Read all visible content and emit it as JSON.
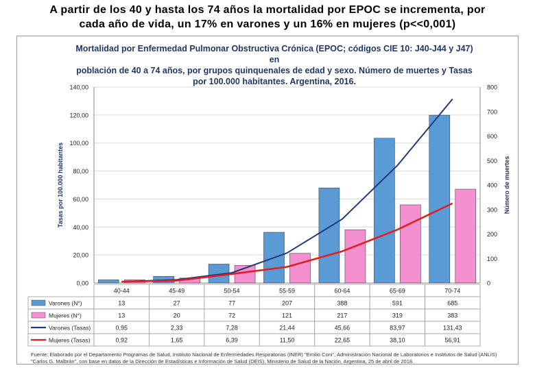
{
  "headline": {
    "line1": "A partir de los 40 y hasta los 74 años la mortalidad por EPOC se incrementa, por",
    "line2": "cada año de vida, un 17% en varones y un 16% en mujeres (p<<0,001)"
  },
  "chart_data": {
    "type": "bar",
    "title_lines": [
      "Mortalidad por Enfermedad Pulmonar Obstructiva Crónica (EPOC; códigos CIE 10: J40-J44 y J47) en",
      "población de 40 a 74 años, por grupos quinquenales de edad y sexo. Número de muertes y Tasas",
      "por 100.000 habitantes. Argentina, 2016."
    ],
    "categories": [
      "40-44",
      "45-49",
      "50-54",
      "55-59",
      "60-64",
      "65-69",
      "70-74"
    ],
    "ylabel": "Tasas por 100.000 habitantes",
    "y2label": "Número de muertes",
    "ylim": [
      0,
      140
    ],
    "y2lim": [
      0,
      800
    ],
    "yticks": [
      "0,00",
      "20,00",
      "40,00",
      "60,00",
      "80,00",
      "100,00",
      "120,00",
      "140,00"
    ],
    "y2ticks": [
      "0",
      "100",
      "200",
      "300",
      "400",
      "500",
      "600",
      "700",
      "800"
    ],
    "bar_series": [
      {
        "name": "Varones (N°)",
        "color": "#5b9bd5",
        "values": [
          13,
          27,
          77,
          207,
          388,
          591,
          685
        ],
        "labels": [
          "13",
          "27",
          "77",
          "207",
          "388",
          "591",
          "685"
        ]
      },
      {
        "name": "Mujeres (N°)",
        "color": "#f48fd0",
        "values": [
          13,
          20,
          72,
          121,
          217,
          319,
          383
        ],
        "labels": [
          "13",
          "20",
          "72",
          "121",
          "217",
          "319",
          "383"
        ]
      }
    ],
    "line_series": [
      {
        "name": "Varones (Tasas)",
        "color": "#1f3a7a",
        "values": [
          0.95,
          2.33,
          7.28,
          21.44,
          45.66,
          83.97,
          131.43
        ],
        "labels": [
          "0,95",
          "2,33",
          "7,28",
          "21,44",
          "45,66",
          "83,97",
          "131,43"
        ]
      },
      {
        "name": "Mujeres (Tasas)",
        "color": "#e02020",
        "values": [
          0.92,
          1.65,
          6.39,
          11.5,
          22.65,
          38.1,
          56.91
        ],
        "labels": [
          "0,92",
          "1,65",
          "6,39",
          "11,50",
          "22,65",
          "38,10",
          "56,91"
        ]
      }
    ],
    "grid": true,
    "source": "Fuente: Elaborado por el Departamento Programas de Salud, Instituto Nacional de Enfermedades Respiratorias (INER) \"Emilio Coni\", Administración Nacional de Laboratorios e Institutos de Salud (ANLIS) \"Carlos G. Malbrán\", con base en datos de la Dirección de Estadísticas e Información de Salud (DEIS), Ministerio de Salud de la Nación, Argentina, 25 de abril de 2018."
  }
}
